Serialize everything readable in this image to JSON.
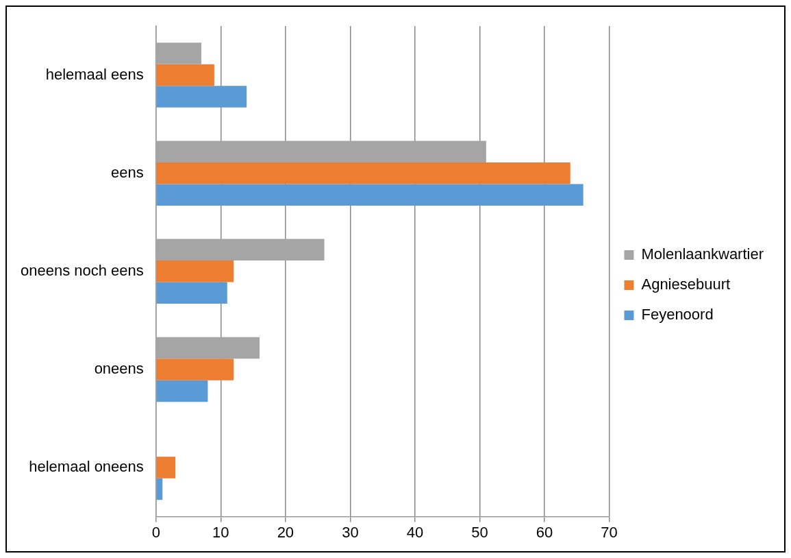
{
  "chart_data": {
    "type": "bar",
    "orientation": "horizontal",
    "categories": [
      "helemaal eens",
      "eens",
      "oneens noch eens",
      "oneens",
      "helemaal oneens"
    ],
    "series": [
      {
        "name": "Molenlaankwartier",
        "color": "#a5a5a5",
        "values": [
          7,
          51,
          26,
          16,
          0
        ]
      },
      {
        "name": "Agniesebuurt",
        "color": "#ed7d31",
        "values": [
          9,
          64,
          12,
          12,
          3
        ]
      },
      {
        "name": "Feyenoord",
        "color": "#5b9bd5",
        "values": [
          14,
          66,
          11,
          8,
          1
        ]
      }
    ],
    "xlim": [
      0,
      70
    ],
    "xticks": [
      0,
      10,
      20,
      30,
      40,
      50,
      60,
      70
    ],
    "grid": "x",
    "legend": "right"
  }
}
